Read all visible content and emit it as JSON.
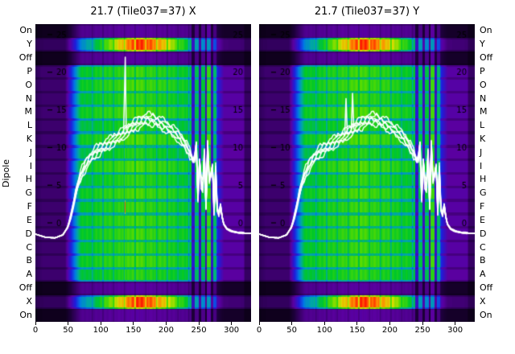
{
  "figure": {
    "background": "#ffffff"
  },
  "chart_data": {
    "type": "heatmap",
    "ylabel": "Dipole",
    "x_range": [
      0,
      330
    ],
    "x_ticks": [
      0,
      50,
      100,
      150,
      200,
      250,
      300
    ],
    "db_ticks": [
      25,
      20,
      15,
      10,
      5,
      0
    ],
    "rows": [
      "On",
      "Y",
      "Off",
      "P",
      "O",
      "N",
      "M",
      "L",
      "K",
      "J",
      "I",
      "H",
      "G",
      "F",
      "E",
      "D",
      "C",
      "B",
      "A",
      "Off",
      "X",
      "On"
    ],
    "row_kinds": [
      "dark",
      "bright",
      "dark",
      "body",
      "body",
      "body",
      "body",
      "body",
      "body",
      "body",
      "body",
      "body",
      "body",
      "body",
      "body",
      "body",
      "body",
      "body",
      "body",
      "dark",
      "bright",
      "dark"
    ],
    "bandpass_breakpoints": [
      [
        0,
        0.02
      ],
      [
        10,
        0.06
      ],
      [
        45,
        0.06
      ],
      [
        70,
        0.85
      ],
      [
        155,
        1.0
      ],
      [
        238,
        0.86
      ],
      [
        278,
        0.35
      ],
      [
        288,
        0.16
      ],
      [
        318,
        0.16
      ],
      [
        320,
        0.04
      ],
      [
        330,
        0.04
      ]
    ],
    "stripe_bands": [
      [
        238,
        243,
        0.3
      ],
      [
        243,
        249,
        0.78
      ],
      [
        249,
        253,
        0.26
      ],
      [
        253,
        259,
        0.8
      ],
      [
        259,
        262,
        0.22
      ],
      [
        262,
        268,
        0.95
      ],
      [
        268,
        271,
        0.28
      ],
      [
        271,
        277,
        0.75
      ],
      [
        277,
        278,
        0.42
      ]
    ],
    "colormap_stops": [
      [
        0.0,
        "#000000"
      ],
      [
        0.08,
        "#1e003c"
      ],
      [
        0.18,
        "#5a00a0"
      ],
      [
        0.28,
        "#1e1edc"
      ],
      [
        0.38,
        "#0078e6"
      ],
      [
        0.46,
        "#00aaa0"
      ],
      [
        0.55,
        "#00c828"
      ],
      [
        0.65,
        "#5adc00"
      ],
      [
        0.75,
        "#dcdc00"
      ],
      [
        0.85,
        "#ff8c00"
      ],
      [
        0.93,
        "#ff1e00"
      ],
      [
        1.0,
        "#c80000"
      ]
    ],
    "overlay_color": "#ffffff",
    "overlay_db": [
      [
        0,
        -1.5
      ],
      [
        15,
        -1.9
      ],
      [
        30,
        -2.0
      ],
      [
        42,
        -1.6
      ],
      [
        50,
        -0.5
      ],
      [
        56,
        1.5
      ],
      [
        63,
        4.5
      ],
      [
        70,
        6.5
      ],
      [
        80,
        8.2
      ],
      [
        90,
        9.2
      ],
      [
        100,
        9.9
      ],
      [
        110,
        10.4
      ],
      [
        120,
        11.0
      ],
      [
        130,
        11.6
      ],
      [
        140,
        12.2
      ],
      [
        150,
        12.9
      ],
      [
        160,
        13.4
      ],
      [
        170,
        13.8
      ],
      [
        180,
        13.7
      ],
      [
        190,
        13.3
      ],
      [
        200,
        12.8
      ],
      [
        210,
        12.2
      ],
      [
        220,
        11.4
      ],
      [
        230,
        10.3
      ],
      [
        238,
        9.0
      ],
      [
        243,
        7.8
      ],
      [
        246,
        11.0
      ],
      [
        249,
        2.5
      ],
      [
        252,
        10.5
      ],
      [
        255,
        1.0
      ],
      [
        258,
        11.0
      ],
      [
        261,
        1.8
      ],
      [
        264,
        12.0
      ],
      [
        267,
        2.5
      ],
      [
        270,
        10.5
      ],
      [
        273,
        0.8
      ],
      [
        276,
        7.5
      ],
      [
        279,
        0.0
      ],
      [
        283,
        2.5
      ],
      [
        287,
        0.0
      ],
      [
        293,
        -0.8
      ],
      [
        300,
        -1.1
      ],
      [
        310,
        -1.3
      ],
      [
        330,
        -1.4
      ]
    ],
    "panels": [
      {
        "title": "21.7 (Tile037=37) X",
        "marker_line_x": 137,
        "spikes": [
          [
            135,
            12.0
          ],
          [
            137.5,
            22.0
          ],
          [
            139,
            12.3
          ]
        ]
      },
      {
        "title": "21.7 (Tile037=37) Y",
        "marker_line_x": 139,
        "spikes": [
          [
            131,
            11.5
          ],
          [
            133,
            16.5
          ],
          [
            135,
            11.8
          ],
          [
            141,
            12.2
          ],
          [
            143,
            17.2
          ],
          [
            145,
            12.4
          ]
        ]
      }
    ]
  }
}
